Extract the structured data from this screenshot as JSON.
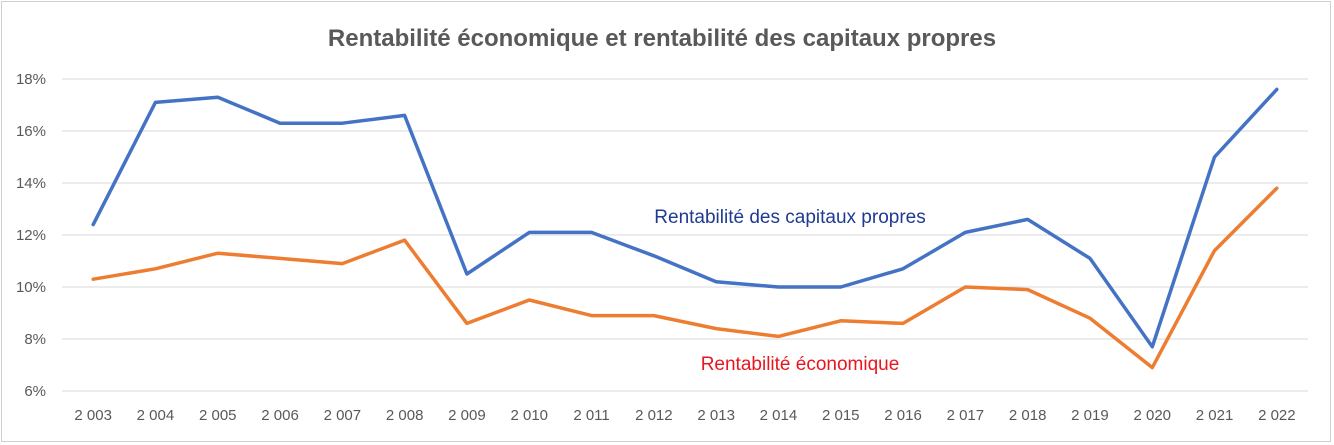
{
  "chart_data": {
    "type": "line",
    "title": "Rentabilité économique et rentabilité des capitaux propres",
    "xlabel": "",
    "ylabel": "",
    "categories": [
      "2 003",
      "2 004",
      "2 005",
      "2 006",
      "2 007",
      "2 008",
      "2 009",
      "2 010",
      "2 011",
      "2 012",
      "2 013",
      "2 014",
      "2 015",
      "2 016",
      "2 017",
      "2 018",
      "2 019",
      "2 020",
      "2 021",
      "2 022"
    ],
    "ylim": [
      6,
      18
    ],
    "yticks": [
      6,
      8,
      10,
      12,
      14,
      16,
      18
    ],
    "ytick_labels": [
      "6%",
      "8%",
      "10%",
      "12%",
      "14%",
      "16%",
      "18%"
    ],
    "grid": true,
    "legend": "none",
    "series": [
      {
        "name": "Rentabilité des capitaux propres",
        "color": "#4472C4",
        "label_color": "#1F3A93",
        "values": [
          12.4,
          17.1,
          17.3,
          16.3,
          16.3,
          16.6,
          10.5,
          12.1,
          12.1,
          11.2,
          10.2,
          10.0,
          10.0,
          10.7,
          12.1,
          12.6,
          11.1,
          7.7,
          15.0,
          17.6
        ]
      },
      {
        "name": "Rentabilité économique",
        "color": "#ED7D31",
        "label_color": "#E8171E",
        "values": [
          10.3,
          10.7,
          11.3,
          11.1,
          10.9,
          11.8,
          8.6,
          9.5,
          8.9,
          8.9,
          8.4,
          8.1,
          8.7,
          8.6,
          10.0,
          9.9,
          8.8,
          6.9,
          11.4,
          13.8
        ]
      }
    ]
  }
}
